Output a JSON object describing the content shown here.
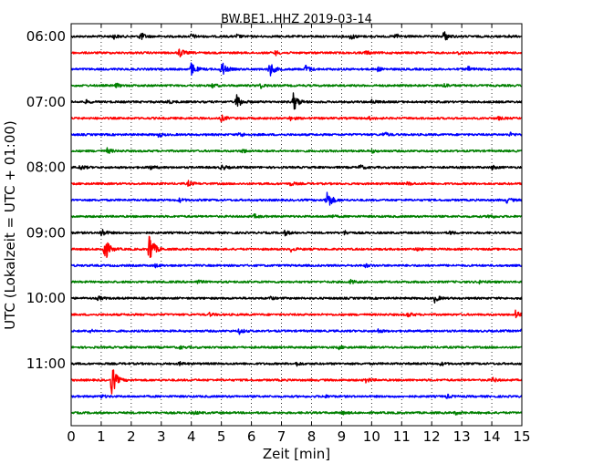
{
  "chart_data": {
    "type": "line",
    "title": "BW.BE1..HHZ 2019-03-14",
    "xlabel": "Zeit  [min]",
    "ylabel": "UTC (Lokalzeit = UTC + 01:00)",
    "xlim": [
      0,
      15
    ],
    "x_ticks": [
      "0",
      "1",
      "2",
      "3",
      "4",
      "5",
      "6",
      "7",
      "8",
      "9",
      "10",
      "11",
      "12",
      "13",
      "14",
      "15"
    ],
    "y_ticks": [
      "06:00",
      "07:00",
      "08:00",
      "09:00",
      "10:00",
      "11:00"
    ],
    "grid": "vertical dotted",
    "trace_colors": [
      "#000000",
      "#ff0000",
      "#0000ff",
      "#008000"
    ],
    "traces": [
      {
        "start": "06:00",
        "events": [
          [
            1.4,
            0.18
          ],
          [
            2.3,
            0.35
          ],
          [
            4.0,
            0.2
          ],
          [
            5.5,
            0.15
          ],
          [
            9.3,
            0.25
          ],
          [
            10.8,
            0.2
          ],
          [
            12.4,
            0.45
          ],
          [
            14.5,
            0.12
          ]
        ]
      },
      {
        "start": "06:15",
        "events": [
          [
            3.6,
            0.4
          ],
          [
            6.8,
            0.18
          ],
          [
            9.8,
            0.15
          ],
          [
            12.9,
            0.15
          ]
        ]
      },
      {
        "start": "06:30",
        "events": [
          [
            4.0,
            0.55
          ],
          [
            5.0,
            0.7
          ],
          [
            6.6,
            0.65
          ],
          [
            7.8,
            0.35
          ],
          [
            10.2,
            0.15
          ],
          [
            13.2,
            0.2
          ]
        ]
      },
      {
        "start": "06:45",
        "events": [
          [
            1.5,
            0.15
          ],
          [
            4.7,
            0.15
          ],
          [
            6.3,
            0.2
          ],
          [
            12.4,
            0.2
          ]
        ]
      },
      {
        "start": "07:00",
        "events": [
          [
            0.5,
            0.12
          ],
          [
            3.2,
            0.15
          ],
          [
            5.5,
            0.65
          ],
          [
            7.4,
            0.8
          ],
          [
            10.0,
            0.15
          ]
        ]
      },
      {
        "start": "07:15",
        "events": [
          [
            5.0,
            0.25
          ],
          [
            7.3,
            0.15
          ],
          [
            9.9,
            0.12
          ],
          [
            14.2,
            0.12
          ]
        ]
      },
      {
        "start": "07:30",
        "events": [
          [
            2.9,
            0.15
          ],
          [
            5.6,
            0.2
          ],
          [
            10.4,
            0.2
          ],
          [
            14.6,
            0.15
          ]
        ]
      },
      {
        "start": "07:45",
        "events": [
          [
            1.2,
            0.2
          ],
          [
            5.7,
            0.15
          ],
          [
            10.0,
            0.12
          ]
        ]
      },
      {
        "start": "08:00",
        "events": [
          [
            0.3,
            0.2
          ],
          [
            2.6,
            0.2
          ],
          [
            5.0,
            0.22
          ],
          [
            9.6,
            0.2
          ],
          [
            14.0,
            0.15
          ]
        ]
      },
      {
        "start": "08:15",
        "events": [
          [
            3.9,
            0.2
          ],
          [
            7.3,
            0.15
          ],
          [
            11.2,
            0.12
          ]
        ]
      },
      {
        "start": "08:30",
        "events": [
          [
            3.6,
            0.15
          ],
          [
            8.5,
            1.0
          ],
          [
            14.5,
            0.2
          ]
        ]
      },
      {
        "start": "08:45",
        "events": [
          [
            6.1,
            0.15
          ],
          [
            8.6,
            0.12
          ],
          [
            13.9,
            0.2
          ]
        ]
      },
      {
        "start": "09:00",
        "events": [
          [
            1.0,
            0.35
          ],
          [
            7.1,
            0.2
          ],
          [
            9.1,
            0.15
          ],
          [
            12.6,
            0.12
          ]
        ]
      },
      {
        "start": "09:15",
        "events": [
          [
            1.1,
            1.2
          ],
          [
            2.6,
            1.5
          ],
          [
            7.3,
            0.18
          ],
          [
            11.5,
            0.12
          ]
        ]
      },
      {
        "start": "09:30",
        "events": [
          [
            2.8,
            0.12
          ],
          [
            9.8,
            0.12
          ]
        ]
      },
      {
        "start": "09:45",
        "events": [
          [
            4.2,
            0.15
          ],
          [
            9.3,
            0.15
          ],
          [
            13.6,
            0.12
          ]
        ]
      },
      {
        "start": "10:00",
        "events": [
          [
            0.9,
            0.15
          ],
          [
            6.6,
            0.12
          ],
          [
            12.1,
            0.3
          ]
        ]
      },
      {
        "start": "10:15",
        "events": [
          [
            4.6,
            0.12
          ],
          [
            11.2,
            0.2
          ],
          [
            14.8,
            0.4
          ]
        ]
      },
      {
        "start": "10:30",
        "events": [
          [
            0.6,
            0.12
          ],
          [
            5.6,
            0.2
          ],
          [
            10.2,
            0.15
          ],
          [
            15.0,
            0.15
          ]
        ]
      },
      {
        "start": "10:45",
        "events": [
          [
            3.6,
            0.12
          ],
          [
            8.9,
            0.12
          ]
        ]
      },
      {
        "start": "11:00",
        "events": [
          [
            3.6,
            0.12
          ],
          [
            7.5,
            0.15
          ],
          [
            12.3,
            0.12
          ]
        ]
      },
      {
        "start": "11:15",
        "events": [
          [
            1.35,
            1.35
          ],
          [
            9.8,
            0.2
          ],
          [
            14.0,
            0.2
          ]
        ]
      },
      {
        "start": "11:30",
        "events": [
          [
            1.0,
            0.12
          ],
          [
            8.4,
            0.12
          ],
          [
            12.5,
            0.15
          ]
        ]
      },
      {
        "start": "11:45",
        "events": [
          [
            4.1,
            0.12
          ],
          [
            9.0,
            0.12
          ],
          [
            12.8,
            0.12
          ]
        ]
      }
    ]
  }
}
